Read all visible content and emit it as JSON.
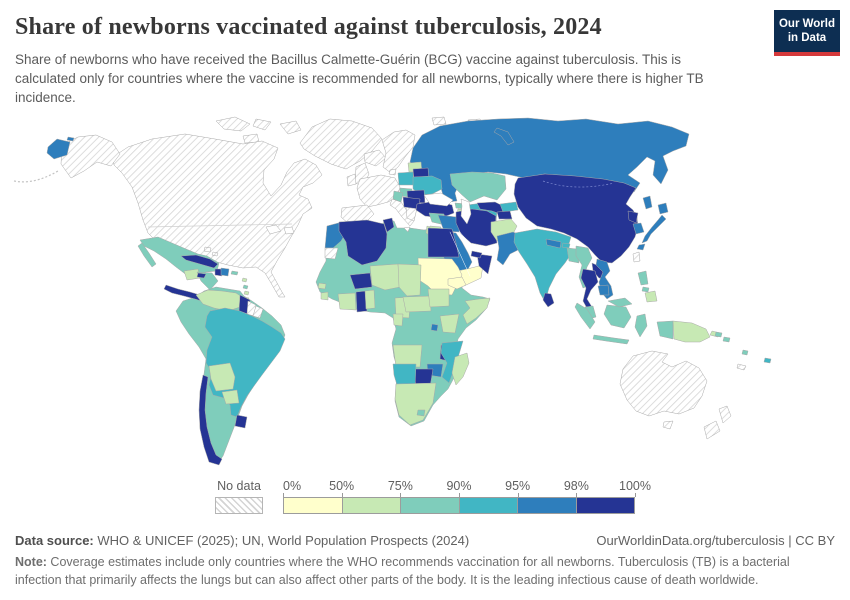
{
  "header": {
    "title": "Share of newborns vaccinated against tuberculosis, 2024",
    "subtitle": "Share of newborns who have received the Bacillus Calmette-Guérin (BCG) vaccine against tuberculosis. This is calculated only for countries where the vaccine is recommended for all newborns, typically where there is higher TB incidence.",
    "logo": {
      "line1": "Our World",
      "line2": "in Data",
      "bg_color": "#0d2e52",
      "accent_color": "#d5393b"
    }
  },
  "legend": {
    "no_data_label": "No data",
    "tick_labels": [
      "0%",
      "50%",
      "75%",
      "90%",
      "95%",
      "98%",
      "100%"
    ],
    "bin_colors": [
      "#FFFFCC",
      "#C7E9B4",
      "#7FCDBB",
      "#41B6C4",
      "#2E7EBC",
      "#253494"
    ]
  },
  "footer": {
    "data_source_label": "Data source:",
    "data_source": " WHO & UNICEF (2025); UN, World Population Prospects (2024)",
    "link": "OurWorldinData.org/tuberculosis | CC BY",
    "note_label": "Note:",
    "note": " Coverage estimates include only countries where the WHO recommends vaccination for all newborns. Tuberculosis (TB) is a bacterial infection that primarily affects the lungs but can also affect other parts of the body. It is the leading infectious cause of death worldwide."
  },
  "chart_data": {
    "type": "choropleth_map",
    "title": "Share of newborns vaccinated against tuberculosis, 2024",
    "unit": "%",
    "bin_edges_percent": [
      0,
      50,
      75,
      90,
      95,
      98,
      100
    ],
    "bin_colors": [
      "#FFFFCC",
      "#C7E9B4",
      "#7FCDBB",
      "#41B6C4",
      "#2E7EBC",
      "#253494"
    ],
    "no_data_regions": [
      "United States",
      "Canada",
      "Greenland",
      "Iceland",
      "Western Europe",
      "Spain",
      "Italy",
      "Greece",
      "UK",
      "Ireland",
      "Scandinavia",
      "Australia",
      "New Zealand",
      "Suriname",
      "French Guiana",
      "Taiwan",
      "Western Sahara",
      "Bahamas",
      "New Caledonia"
    ],
    "regions_by_bin": {
      "0-50%": [
        "Sudan",
        "Yemen",
        "Eritrea"
      ],
      "50-75%": [
        "Venezuela",
        "Bolivia",
        "Paraguay",
        "Guatemala",
        "Afghanistan",
        "Niger",
        "Chad",
        "Somalia",
        "Kenya",
        "Angola",
        "South Africa",
        "Madagascar",
        "Cameroon",
        "Central African Republic",
        "South Sudan",
        "Cote d'Ivoire",
        "Togo",
        "Benin",
        "Sierra Leone",
        "Guinea-Bissau",
        "Baltic states",
        "Jordan",
        "Israel",
        "Papua New Guinea",
        "Philippines (south)",
        "Gabon",
        "Armenia"
      ],
      "75-90%": [
        "Mexico",
        "Honduras",
        "Nicaragua",
        "Colombia",
        "Peru",
        "Ecuador",
        "Argentina",
        "Mali",
        "Mauritania",
        "Senegal",
        "Guinea",
        "Liberia",
        "Nigeria",
        "Libya",
        "DR Congo",
        "Congo",
        "Zambia",
        "Tanzania",
        "Uganda",
        "Ethiopia",
        "Kazakhstan",
        "Syria",
        "Georgia",
        "Myanmar",
        "Bangladesh",
        "Malaysia",
        "Indonesia",
        "Philippines (north)",
        "Hungary",
        "Croatia",
        "Bosnia",
        "Solomon Islands",
        "Vanuatu",
        "Puerto Rico",
        "Lesotho"
      ],
      "90-95%": [
        "Brazil",
        "India",
        "Poland",
        "Ukraine",
        "Kyrgyzstan",
        "Turkmenistan",
        "Namibia",
        "Mozambique",
        "Fiji",
        "Bhutan"
      ],
      "95-98%": [
        "Russia",
        "Japan",
        "South Korea",
        "Morocco",
        "Iraq",
        "Saudi Arabia",
        "Pakistan",
        "Nepal",
        "Vietnam",
        "Cambodia",
        "Zimbabwe",
        "Rwanda",
        "Burundi",
        "Dominican Republic"
      ],
      "98-100%": [
        "China",
        "Mongolia",
        "North Korea",
        "Thailand",
        "Laos",
        "Sri Lanka",
        "Iran",
        "Turkey",
        "Azerbaijan",
        "Uzbekistan",
        "Tajikistan",
        "Oman",
        "United Arab Emirates",
        "Egypt",
        "Algeria",
        "Tunisia",
        "Burkina Faso",
        "Ghana",
        "Botswana",
        "Malawi",
        "Chile",
        "Uruguay",
        "Guyana",
        "Cuba",
        "Haiti",
        "Jamaica",
        "Costa Rica",
        "Panama",
        "Belarus",
        "Romania",
        "Serbia",
        "Bulgaria"
      ]
    }
  },
  "map": {
    "regions": {
      "greenland": "nd",
      "canada-usa": "nd",
      "alaska": "nd",
      "arctic-a": "nd",
      "arctic-b": "nd",
      "arctic-c": "nd",
      "arctic-d": "nd",
      "iceland": "nd",
      "uk": "nd",
      "ireland": "nd",
      "scandinavia": "nd",
      "west-europe": "nd",
      "denmark": "nd",
      "spain": "nd",
      "italy": "nd",
      "sicily": "nd",
      "greece": "nd",
      "australia": "nd",
      "tasmania": "nd",
      "new-zealand-north": "nd",
      "new-zealand-south": "nd",
      "suriname": "nd",
      "french-guiana": "nd",
      "western-sahara": "nd",
      "taiwan": "nd",
      "new-caledonia": "nd",
      "bahamas-a": "nd",
      "bahamas-b": "nd",
      "svalbard": "nd",
      "franz-josef": "nd",
      "russia": 4,
      "wrangel-island": 4,
      "chukotka-west": 4,
      "novaya-zemlya": 4,
      "sakhalin": 4,
      "japan-hokkaido": 4,
      "japan-honshu": 4,
      "japan-kyushu": 4,
      "south-korea": 4,
      "morocco": 4,
      "iraq": 4,
      "saudi-arabia": 4,
      "pakistan": 4,
      "nepal": 4,
      "vietnam": 4,
      "cambodia": 4,
      "zimbabwe": 4,
      "rwanda-burundi": 4,
      "dominican-republic": 4,
      "brazil": 3,
      "india": 3,
      "poland": 3,
      "ukraine": 3,
      "kyrgyzstan": 3,
      "turkmenistan": 3,
      "namibia": 3,
      "mozambique": 3,
      "fiji": 3,
      "bhutan": 3,
      "china-mongolia": 5,
      "north-korea": 5,
      "thailand": 5,
      "laos": 5,
      "sri-lanka": 5,
      "iran": 5,
      "turkey": 5,
      "azerbaijan": 5,
      "uzbekistan": 5,
      "tajikistan": 5,
      "oman": 5,
      "uae": 5,
      "egypt": 5,
      "algeria": 5,
      "tunisia": 5,
      "burkina-faso": 5,
      "ghana": 5,
      "botswana": 5,
      "malawi": 5,
      "chile": 5,
      "uruguay": 5,
      "guyana": 5,
      "cuba": 5,
      "haiti": 5,
      "jamaica": 5,
      "costa-rica-panama": 5,
      "belarus": 5,
      "romania": 5,
      "serbia-bulgaria": 5,
      "venezuela": 1,
      "bolivia": 1,
      "paraguay": 1,
      "guatemala": 1,
      "afghanistan": 1,
      "niger": 1,
      "chad": 1,
      "somalia": 1,
      "kenya": 1,
      "angola": 1,
      "south-africa": 1,
      "madagascar": 1,
      "cameroon": 1,
      "central-african-republic": 1,
      "south-sudan": 1,
      "cote-divoire": 1,
      "togo-benin": 1,
      "sierra-leone": 1,
      "guinea-bissau": 1,
      "baltic-states": 1,
      "jordan": 1,
      "israel": 1,
      "papua-new-guinea": 1,
      "new-britain": 1,
      "philippines-mindanao": 1,
      "gabon": 1,
      "armenia": 1,
      "antilles-a": 1,
      "antilles-c": 1,
      "trinidad": 1,
      "sudan": 0,
      "yemen": 0,
      "eritrea": 0,
      "mexico": 2,
      "mexico-baja": 2,
      "honduras-nicaragua": 2,
      "south-america-base": 2,
      "africa-base": 2,
      "kazakhstan": 2,
      "syria": 2,
      "georgia": 2,
      "myanmar": 2,
      "bangladesh": 2,
      "malaysia-peninsula": 2,
      "malaysia-borneo": 2,
      "sumatra": 2,
      "java": 2,
      "kalimantan": 2,
      "sulawesi": 2,
      "west-papua": 2,
      "philippines-luzon": 2,
      "philippines-visayas": 2,
      "solomon-a": 2,
      "solomon-b": 2,
      "vanuatu": 2,
      "puerto-rico": 2,
      "hungary": 2,
      "croatia-bosnia": 2,
      "lesotho": 2,
      "antilles-b": 2
    }
  }
}
